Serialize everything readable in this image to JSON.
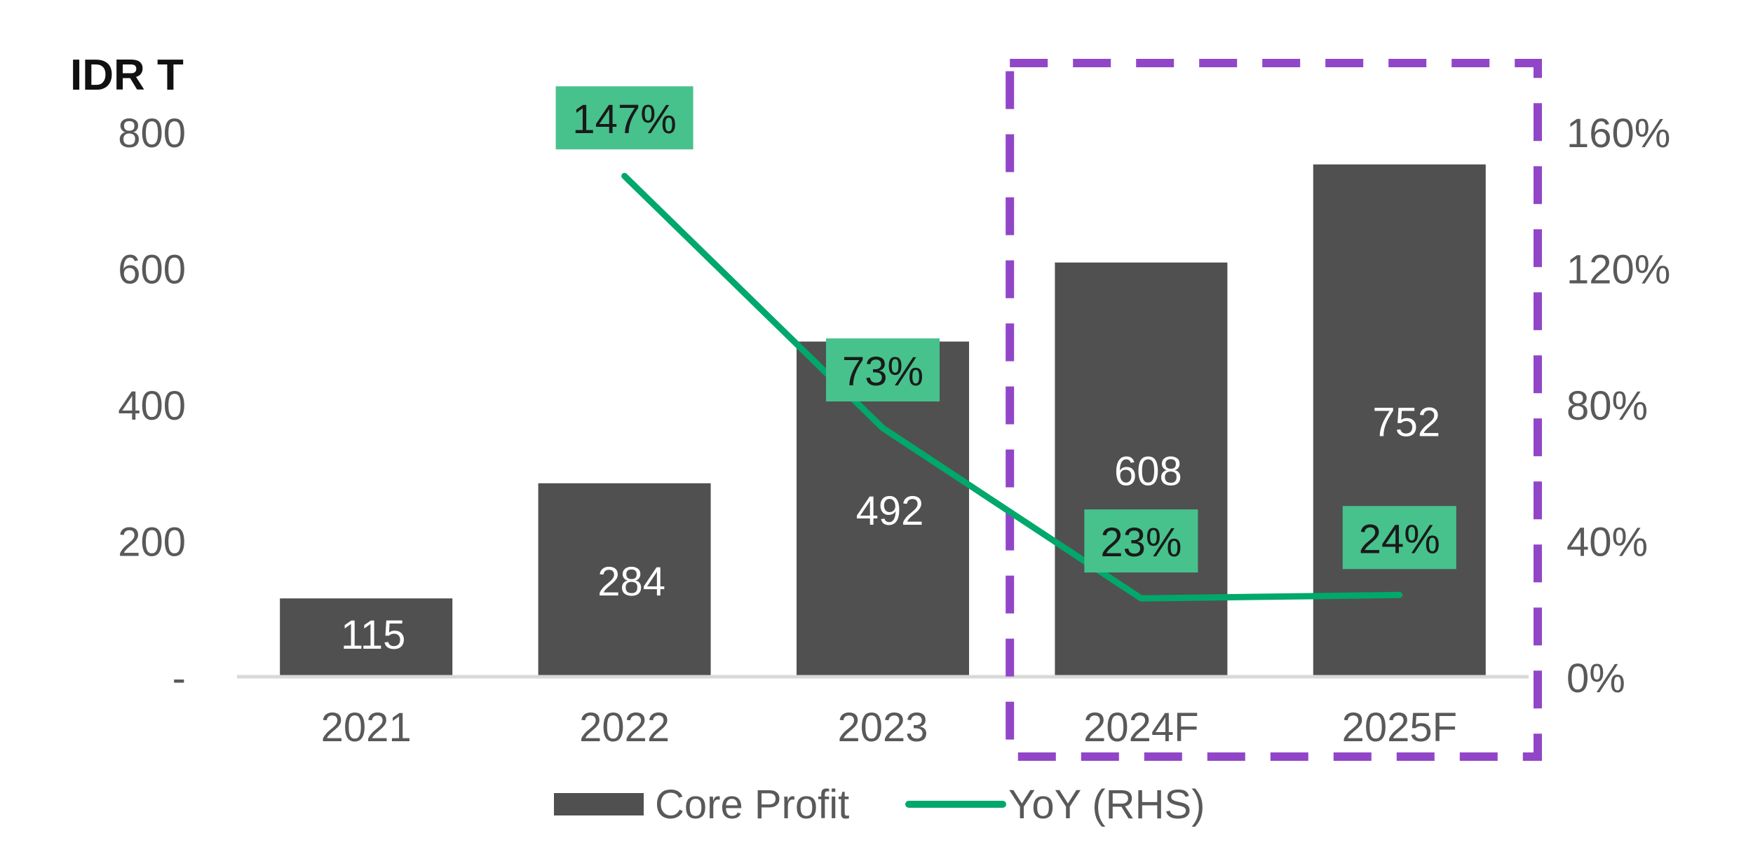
{
  "chart_data": {
    "type": "bar",
    "unit_label": "IDR T",
    "categories": [
      "2021",
      "2022",
      "2023",
      "2024F",
      "2025F"
    ],
    "series": [
      {
        "name": "Core Profit",
        "type": "bar",
        "axis": "left",
        "color": "#505050",
        "values": [
          115,
          284,
          492,
          608,
          752
        ],
        "labels": [
          "115",
          "284",
          "492",
          "608",
          "752"
        ]
      },
      {
        "name": "YoY (RHS)",
        "type": "line",
        "axis": "right",
        "color": "#00A86B",
        "values": [
          null,
          147,
          73,
          23,
          24
        ],
        "labels": [
          "",
          "147%",
          "73%",
          "23%",
          "24%"
        ]
      }
    ],
    "left_axis": {
      "ylim": [
        0,
        800
      ],
      "ticks": [
        0,
        200,
        400,
        600,
        800
      ],
      "tick_labels": [
        "-",
        "200",
        "400",
        "600",
        "800"
      ]
    },
    "right_axis": {
      "ylim": [
        0,
        160
      ],
      "ticks": [
        0,
        40,
        80,
        120,
        160
      ],
      "tick_labels": [
        "0%",
        "40%",
        "80%",
        "120%",
        "160%"
      ]
    },
    "label_bg_color": "#47C28C",
    "highlight": {
      "categories": [
        "2024F",
        "2025F"
      ],
      "color": "#9146C8",
      "style": "dashed"
    },
    "grid": false,
    "legend_position": "bottom"
  }
}
